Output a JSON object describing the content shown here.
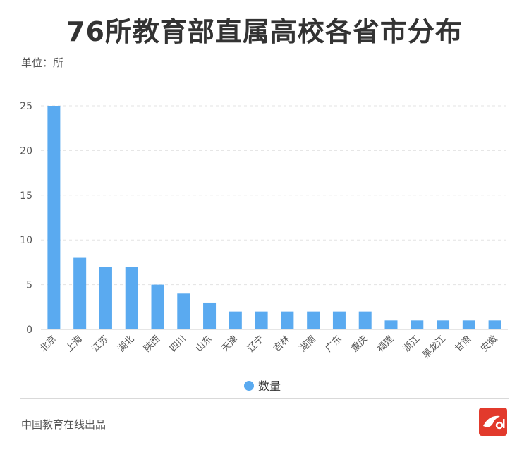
{
  "chart_data": {
    "type": "bar",
    "title": "76所教育部直属高校各省市分布",
    "unit_label": "单位：所",
    "categories": [
      "北京",
      "上海",
      "江苏",
      "湖北",
      "陕西",
      "四川",
      "山东",
      "天津",
      "辽宁",
      "吉林",
      "湖南",
      "广东",
      "重庆",
      "福建",
      "浙江",
      "黑龙江",
      "甘肃",
      "安徽"
    ],
    "series": [
      {
        "name": "数量",
        "values": [
          25,
          8,
          7,
          7,
          5,
          4,
          3,
          2,
          2,
          2,
          2,
          2,
          2,
          1,
          1,
          1,
          1,
          1
        ]
      }
    ],
    "ylim": [
      0,
      25
    ],
    "yticks": [
      0,
      5,
      10,
      15,
      20,
      25
    ],
    "grid": true,
    "legend_position": "bottom-center",
    "bar_color": "#5aaaf0"
  },
  "footer": {
    "credit": "中国教育在线出品"
  }
}
